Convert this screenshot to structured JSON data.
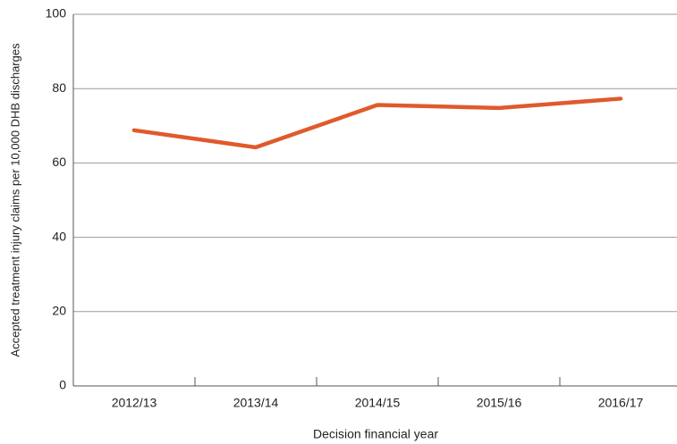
{
  "chart_data": {
    "type": "line",
    "x_label": "Decision financial year",
    "y_label": "Accepted treatment injury claims per 10,000 DHB discharges",
    "categories": [
      "2012/13",
      "2013/14",
      "2014/15",
      "2015/16",
      "2016/17"
    ],
    "values": [
      68.8,
      64.2,
      75.6,
      74.8,
      77.3
    ],
    "color": "#e05a2b",
    "ylim": [
      0,
      100
    ],
    "yticks": [
      0,
      20,
      40,
      60,
      80,
      100
    ],
    "grid": true
  }
}
